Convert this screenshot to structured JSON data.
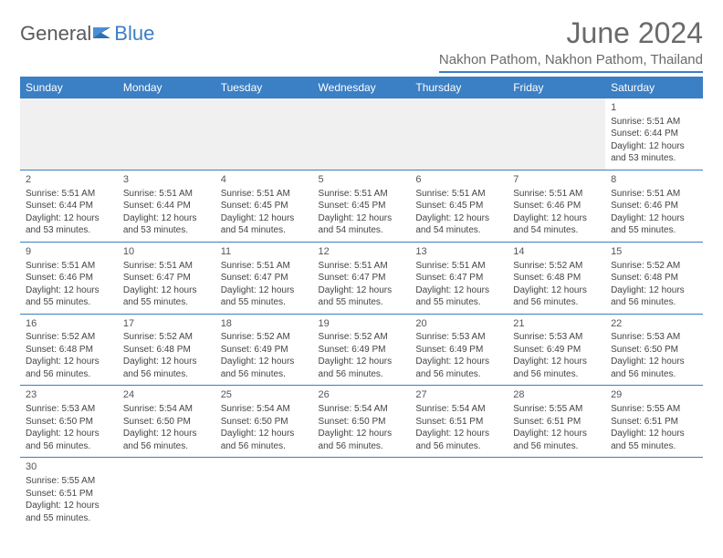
{
  "brand": {
    "part1": "General",
    "part2": "Blue"
  },
  "title": "June 2024",
  "location": "Nakhon Pathom, Nakhon Pathom, Thailand",
  "colors": {
    "header_bg": "#3b7fc4",
    "header_text": "#ffffff",
    "border": "#3b7fc4",
    "empty_bg": "#f0f0f0",
    "text": "#444444",
    "title_text": "#6a6a6a"
  },
  "day_headers": [
    "Sunday",
    "Monday",
    "Tuesday",
    "Wednesday",
    "Thursday",
    "Friday",
    "Saturday"
  ],
  "weeks": [
    [
      {
        "empty": true
      },
      {
        "empty": true
      },
      {
        "empty": true
      },
      {
        "empty": true
      },
      {
        "empty": true
      },
      {
        "empty": true
      },
      {
        "day": "1",
        "sunrise": "Sunrise: 5:51 AM",
        "sunset": "Sunset: 6:44 PM",
        "daylight1": "Daylight: 12 hours",
        "daylight2": "and 53 minutes."
      }
    ],
    [
      {
        "day": "2",
        "sunrise": "Sunrise: 5:51 AM",
        "sunset": "Sunset: 6:44 PM",
        "daylight1": "Daylight: 12 hours",
        "daylight2": "and 53 minutes."
      },
      {
        "day": "3",
        "sunrise": "Sunrise: 5:51 AM",
        "sunset": "Sunset: 6:44 PM",
        "daylight1": "Daylight: 12 hours",
        "daylight2": "and 53 minutes."
      },
      {
        "day": "4",
        "sunrise": "Sunrise: 5:51 AM",
        "sunset": "Sunset: 6:45 PM",
        "daylight1": "Daylight: 12 hours",
        "daylight2": "and 54 minutes."
      },
      {
        "day": "5",
        "sunrise": "Sunrise: 5:51 AM",
        "sunset": "Sunset: 6:45 PM",
        "daylight1": "Daylight: 12 hours",
        "daylight2": "and 54 minutes."
      },
      {
        "day": "6",
        "sunrise": "Sunrise: 5:51 AM",
        "sunset": "Sunset: 6:45 PM",
        "daylight1": "Daylight: 12 hours",
        "daylight2": "and 54 minutes."
      },
      {
        "day": "7",
        "sunrise": "Sunrise: 5:51 AM",
        "sunset": "Sunset: 6:46 PM",
        "daylight1": "Daylight: 12 hours",
        "daylight2": "and 54 minutes."
      },
      {
        "day": "8",
        "sunrise": "Sunrise: 5:51 AM",
        "sunset": "Sunset: 6:46 PM",
        "daylight1": "Daylight: 12 hours",
        "daylight2": "and 55 minutes."
      }
    ],
    [
      {
        "day": "9",
        "sunrise": "Sunrise: 5:51 AM",
        "sunset": "Sunset: 6:46 PM",
        "daylight1": "Daylight: 12 hours",
        "daylight2": "and 55 minutes."
      },
      {
        "day": "10",
        "sunrise": "Sunrise: 5:51 AM",
        "sunset": "Sunset: 6:47 PM",
        "daylight1": "Daylight: 12 hours",
        "daylight2": "and 55 minutes."
      },
      {
        "day": "11",
        "sunrise": "Sunrise: 5:51 AM",
        "sunset": "Sunset: 6:47 PM",
        "daylight1": "Daylight: 12 hours",
        "daylight2": "and 55 minutes."
      },
      {
        "day": "12",
        "sunrise": "Sunrise: 5:51 AM",
        "sunset": "Sunset: 6:47 PM",
        "daylight1": "Daylight: 12 hours",
        "daylight2": "and 55 minutes."
      },
      {
        "day": "13",
        "sunrise": "Sunrise: 5:51 AM",
        "sunset": "Sunset: 6:47 PM",
        "daylight1": "Daylight: 12 hours",
        "daylight2": "and 55 minutes."
      },
      {
        "day": "14",
        "sunrise": "Sunrise: 5:52 AM",
        "sunset": "Sunset: 6:48 PM",
        "daylight1": "Daylight: 12 hours",
        "daylight2": "and 56 minutes."
      },
      {
        "day": "15",
        "sunrise": "Sunrise: 5:52 AM",
        "sunset": "Sunset: 6:48 PM",
        "daylight1": "Daylight: 12 hours",
        "daylight2": "and 56 minutes."
      }
    ],
    [
      {
        "day": "16",
        "sunrise": "Sunrise: 5:52 AM",
        "sunset": "Sunset: 6:48 PM",
        "daylight1": "Daylight: 12 hours",
        "daylight2": "and 56 minutes."
      },
      {
        "day": "17",
        "sunrise": "Sunrise: 5:52 AM",
        "sunset": "Sunset: 6:48 PM",
        "daylight1": "Daylight: 12 hours",
        "daylight2": "and 56 minutes."
      },
      {
        "day": "18",
        "sunrise": "Sunrise: 5:52 AM",
        "sunset": "Sunset: 6:49 PM",
        "daylight1": "Daylight: 12 hours",
        "daylight2": "and 56 minutes."
      },
      {
        "day": "19",
        "sunrise": "Sunrise: 5:52 AM",
        "sunset": "Sunset: 6:49 PM",
        "daylight1": "Daylight: 12 hours",
        "daylight2": "and 56 minutes."
      },
      {
        "day": "20",
        "sunrise": "Sunrise: 5:53 AM",
        "sunset": "Sunset: 6:49 PM",
        "daylight1": "Daylight: 12 hours",
        "daylight2": "and 56 minutes."
      },
      {
        "day": "21",
        "sunrise": "Sunrise: 5:53 AM",
        "sunset": "Sunset: 6:49 PM",
        "daylight1": "Daylight: 12 hours",
        "daylight2": "and 56 minutes."
      },
      {
        "day": "22",
        "sunrise": "Sunrise: 5:53 AM",
        "sunset": "Sunset: 6:50 PM",
        "daylight1": "Daylight: 12 hours",
        "daylight2": "and 56 minutes."
      }
    ],
    [
      {
        "day": "23",
        "sunrise": "Sunrise: 5:53 AM",
        "sunset": "Sunset: 6:50 PM",
        "daylight1": "Daylight: 12 hours",
        "daylight2": "and 56 minutes."
      },
      {
        "day": "24",
        "sunrise": "Sunrise: 5:54 AM",
        "sunset": "Sunset: 6:50 PM",
        "daylight1": "Daylight: 12 hours",
        "daylight2": "and 56 minutes."
      },
      {
        "day": "25",
        "sunrise": "Sunrise: 5:54 AM",
        "sunset": "Sunset: 6:50 PM",
        "daylight1": "Daylight: 12 hours",
        "daylight2": "and 56 minutes."
      },
      {
        "day": "26",
        "sunrise": "Sunrise: 5:54 AM",
        "sunset": "Sunset: 6:50 PM",
        "daylight1": "Daylight: 12 hours",
        "daylight2": "and 56 minutes."
      },
      {
        "day": "27",
        "sunrise": "Sunrise: 5:54 AM",
        "sunset": "Sunset: 6:51 PM",
        "daylight1": "Daylight: 12 hours",
        "daylight2": "and 56 minutes."
      },
      {
        "day": "28",
        "sunrise": "Sunrise: 5:55 AM",
        "sunset": "Sunset: 6:51 PM",
        "daylight1": "Daylight: 12 hours",
        "daylight2": "and 56 minutes."
      },
      {
        "day": "29",
        "sunrise": "Sunrise: 5:55 AM",
        "sunset": "Sunset: 6:51 PM",
        "daylight1": "Daylight: 12 hours",
        "daylight2": "and 55 minutes."
      }
    ],
    [
      {
        "day": "30",
        "sunrise": "Sunrise: 5:55 AM",
        "sunset": "Sunset: 6:51 PM",
        "daylight1": "Daylight: 12 hours",
        "daylight2": "and 55 minutes."
      },
      {
        "blank": true
      },
      {
        "blank": true
      },
      {
        "blank": true
      },
      {
        "blank": true
      },
      {
        "blank": true
      },
      {
        "blank": true
      }
    ]
  ]
}
